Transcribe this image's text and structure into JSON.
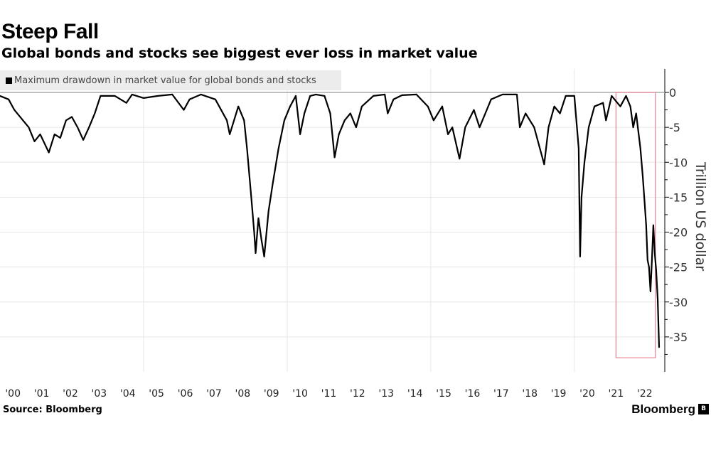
{
  "header": {
    "title": "Steep Fall",
    "subtitle": "Global bonds and stocks see biggest ever loss in market value"
  },
  "footer": {
    "source": "Source: Bloomberg",
    "brand": "Bloomberg",
    "brand_icon": "bloomberg-logo-icon"
  },
  "chart_data": {
    "type": "line",
    "title": "Steep Fall",
    "subtitle": "Global bonds and stocks see biggest ever loss in market value",
    "xlabel": "",
    "ylabel": "Trillion US dollar",
    "xlim": [
      2000,
      2023
    ],
    "ylim": [
      -40,
      0
    ],
    "grid": true,
    "legend": {
      "placement": "top-left",
      "entries": [
        "Maximum drawdown in market value for global bonds and stocks"
      ]
    },
    "x_ticks": [
      {
        "pos": 2000,
        "label": "'00"
      },
      {
        "pos": 2001,
        "label": "'01"
      },
      {
        "pos": 2002,
        "label": "'02"
      },
      {
        "pos": 2003,
        "label": "'03"
      },
      {
        "pos": 2004,
        "label": "'04"
      },
      {
        "pos": 2005,
        "label": "'05"
      },
      {
        "pos": 2006,
        "label": "'06"
      },
      {
        "pos": 2007,
        "label": "'07"
      },
      {
        "pos": 2008,
        "label": "'08"
      },
      {
        "pos": 2009,
        "label": "'09"
      },
      {
        "pos": 2010,
        "label": "'10"
      },
      {
        "pos": 2011,
        "label": "'11"
      },
      {
        "pos": 2012,
        "label": "'12"
      },
      {
        "pos": 2013,
        "label": "'13"
      },
      {
        "pos": 2014,
        "label": "'14"
      },
      {
        "pos": 2015,
        "label": "'15"
      },
      {
        "pos": 2016,
        "label": "'16"
      },
      {
        "pos": 2017,
        "label": "'17"
      },
      {
        "pos": 2018,
        "label": "'18"
      },
      {
        "pos": 2019,
        "label": "'19"
      },
      {
        "pos": 2020,
        "label": "'20"
      },
      {
        "pos": 2021,
        "label": "'21"
      },
      {
        "pos": 2022,
        "label": "'22"
      }
    ],
    "y_ticks": [
      {
        "value": 0,
        "label": "0"
      },
      {
        "value": -5,
        "label": "-5"
      },
      {
        "value": -10,
        "label": "-10"
      },
      {
        "value": -15,
        "label": "-15"
      },
      {
        "value": -20,
        "label": "-20"
      },
      {
        "value": -25,
        "label": "-25"
      },
      {
        "value": -30,
        "label": "-30"
      },
      {
        "value": -35,
        "label": "-35"
      }
    ],
    "x_gridlines": [
      2005,
      2010,
      2015,
      2020
    ],
    "highlight": {
      "x": [
        2021.45,
        2022.82
      ],
      "y": [
        -38,
        0
      ],
      "color": "#e88a9a"
    },
    "series": [
      {
        "name": "Maximum drawdown in market value for global bonds and stocks",
        "color": "#000000",
        "x": [
          2000.0,
          2000.3,
          2000.5,
          2000.8,
          2001.0,
          2001.2,
          2001.4,
          2001.7,
          2001.9,
          2002.1,
          2002.3,
          2002.5,
          2002.7,
          2002.9,
          2003.1,
          2003.3,
          2003.5,
          2004.0,
          2004.4,
          2004.6,
          2005.0,
          2005.5,
          2006.0,
          2006.4,
          2006.6,
          2007.0,
          2007.5,
          2007.9,
          2008.0,
          2008.3,
          2008.5,
          2008.6,
          2008.75,
          2008.85,
          2008.9,
          2009.0,
          2009.1,
          2009.2,
          2009.35,
          2009.5,
          2009.7,
          2009.9,
          2010.1,
          2010.3,
          2010.45,
          2010.6,
          2010.8,
          2011.0,
          2011.3,
          2011.5,
          2011.65,
          2011.8,
          2012.0,
          2012.2,
          2012.4,
          2012.6,
          2013.0,
          2013.4,
          2013.5,
          2013.7,
          2014.0,
          2014.5,
          2014.9,
          2015.1,
          2015.4,
          2015.6,
          2015.75,
          2016.0,
          2016.2,
          2016.5,
          2016.7,
          2016.9,
          2017.1,
          2017.5,
          2018.0,
          2018.1,
          2018.3,
          2018.6,
          2018.95,
          2019.1,
          2019.3,
          2019.5,
          2019.7,
          2020.0,
          2020.15,
          2020.2,
          2020.25,
          2020.35,
          2020.5,
          2020.7,
          2021.0,
          2021.1,
          2021.3,
          2021.6,
          2021.8,
          2021.95,
          2022.05,
          2022.15,
          2022.3,
          2022.38,
          2022.45,
          2022.5,
          2022.55,
          2022.6,
          2022.65,
          2022.7,
          2022.75,
          2022.8,
          2022.85,
          2022.9,
          2022.95
        ],
        "y": [
          -0.5,
          -1,
          -2.5,
          -4,
          -5,
          -7,
          -6,
          -8.6,
          -6,
          -6.5,
          -4,
          -3.5,
          -5,
          -6.8,
          -5,
          -3,
          -0.5,
          -0.5,
          -1.5,
          -0.3,
          -0.8,
          -0.5,
          -0.3,
          -2.5,
          -1,
          -0.3,
          -1,
          -4,
          -6,
          -2,
          -4,
          -8,
          -15,
          -20,
          -23,
          -18,
          -21,
          -23.5,
          -17,
          -13,
          -8,
          -4,
          -2,
          -0.5,
          -6,
          -3,
          -0.5,
          -0.3,
          -0.5,
          -3,
          -9.3,
          -6,
          -4,
          -3,
          -5,
          -2,
          -0.5,
          -0.3,
          -3,
          -1,
          -0.4,
          -0.3,
          -2,
          -4,
          -2,
          -6,
          -5,
          -9.5,
          -5,
          -2.5,
          -5,
          -3,
          -1,
          -0.3,
          -0.3,
          -5,
          -3,
          -5,
          -10.3,
          -5,
          -2,
          -3,
          -0.5,
          -0.5,
          -8,
          -23.5,
          -15,
          -10,
          -5,
          -2,
          -1.5,
          -4,
          -0.5,
          -2,
          -0.5,
          -2,
          -5,
          -3,
          -8,
          -12,
          -16,
          -19,
          -24,
          -25,
          -28.5,
          -24,
          -19,
          -23,
          -25.5,
          -29.5,
          -36.5
        ]
      }
    ]
  }
}
